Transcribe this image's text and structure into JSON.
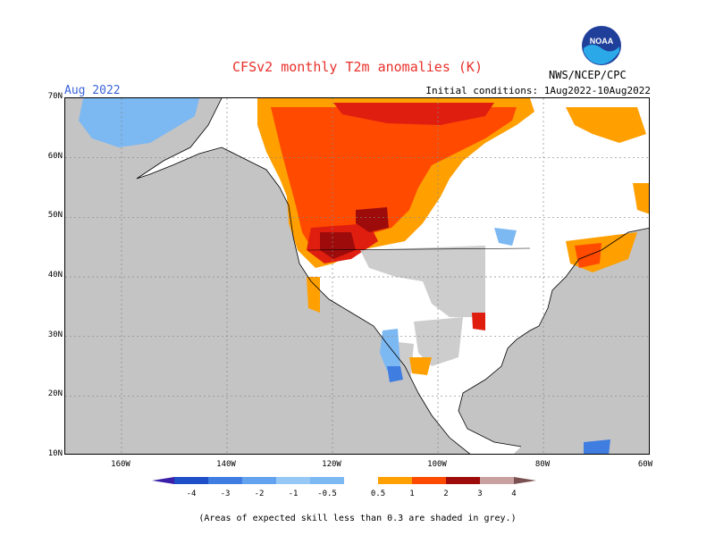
{
  "header": {
    "title": "CFSv2 monthly T2m anomalies (K)",
    "month": "Aug 2022",
    "initial_conditions": "Initial conditions: 1Aug2022-10Aug2022",
    "agency": "NWS/NCEP/CPC",
    "logo_text": "NOAA"
  },
  "axes": {
    "lat_labels": [
      "70N",
      "60N",
      "50N",
      "40N",
      "30N",
      "20N",
      "10N"
    ],
    "lon_labels": [
      "160W",
      "140W",
      "120W",
      "100W",
      "80W",
      "60W"
    ]
  },
  "legend": {
    "ticks": [
      "-4",
      "-3",
      "-2",
      "-1",
      "-0.5",
      "0.5",
      "1",
      "2",
      "3",
      "4"
    ],
    "colors": [
      "#3a1fa8",
      "#1f4fc8",
      "#3f7de0",
      "#62a2ee",
      "#96c8f6",
      "#ffffff",
      "#ff9f00",
      "#ff4a00",
      "#e01e10",
      "#9e0b0b",
      "#c8a0a0",
      "#7a5050"
    ]
  },
  "footnote": "(Areas of expected skill less than 0.3 are shaded in grey.)",
  "colors": {
    "grey": "#c4c4c4",
    "white": "#ffffff",
    "light_blue": "#7cb8f2",
    "blue": "#3f7de0",
    "orange": "#ff9f00",
    "red_orange": "#ff4a00",
    "red": "#e01e10",
    "dark_red": "#9e0b0b",
    "title_red": "#e8302a",
    "month_blue": "#3b64d8"
  }
}
